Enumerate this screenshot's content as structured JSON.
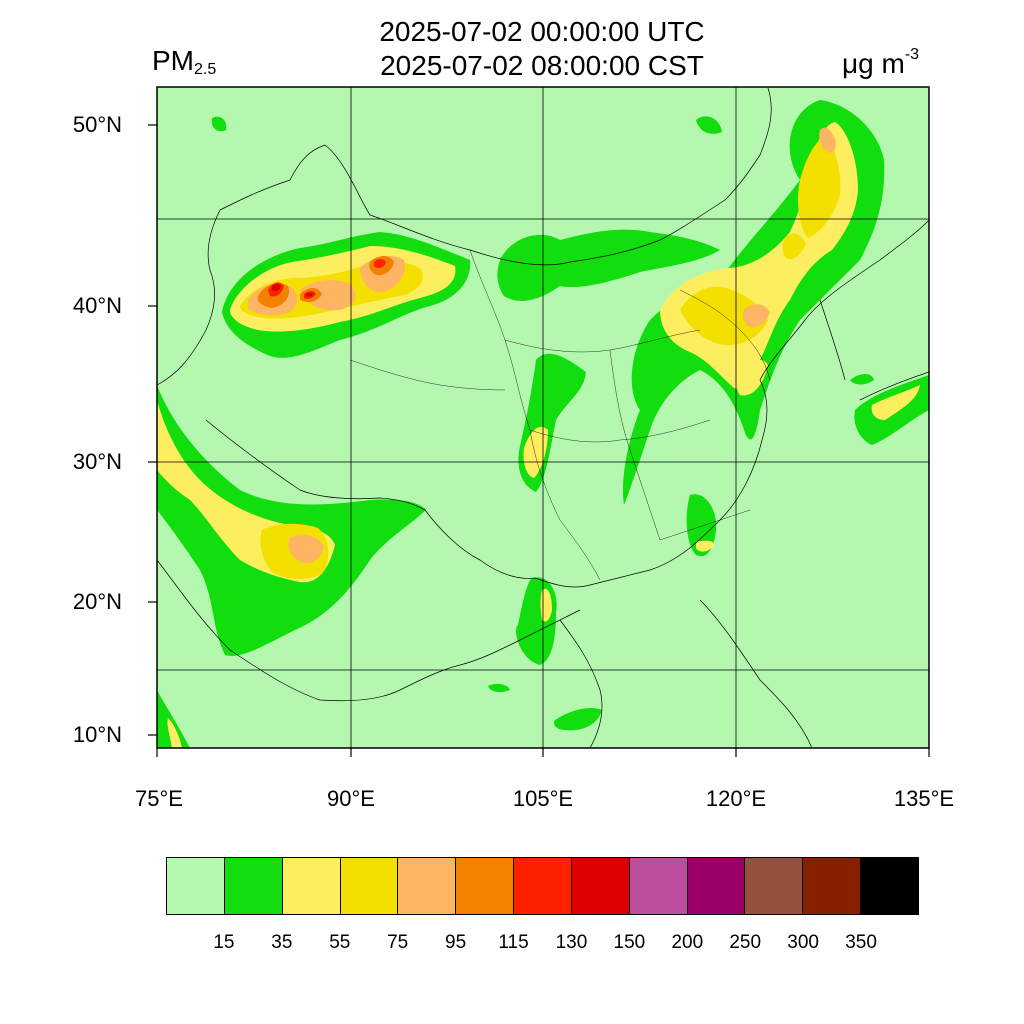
{
  "header": {
    "title_utc": "2025-07-02 00:00:00 UTC",
    "title_cst": "2025-07-02 08:00:00 CST",
    "variable": "PM",
    "variable_sub": "2.5",
    "units": "μg m",
    "units_sup": "-3"
  },
  "axes": {
    "lat_labels": [
      "50°N",
      "40°N",
      "30°N",
      "20°N",
      "10°N"
    ],
    "lon_labels": [
      "75°E",
      "90°E",
      "105°E",
      "120°E",
      "135°E"
    ]
  },
  "colorbar": {
    "colors": [
      "#b4f8af",
      "#12dd0f",
      "#fdee5f",
      "#f4e000",
      "#fdb564",
      "#f48000",
      "#fe2100",
      "#de0000",
      "#bb4e9e",
      "#9b0068",
      "#955040",
      "#882000",
      "#000000"
    ],
    "labels": [
      "15",
      "35",
      "55",
      "75",
      "95",
      "115",
      "130",
      "150",
      "200",
      "250",
      "300",
      "350"
    ]
  },
  "map": {
    "background_color": "#b4f8af",
    "extent": {
      "lon_min": 75,
      "lon_max": 135,
      "lat_min": 9,
      "lat_max": 52
    }
  }
}
